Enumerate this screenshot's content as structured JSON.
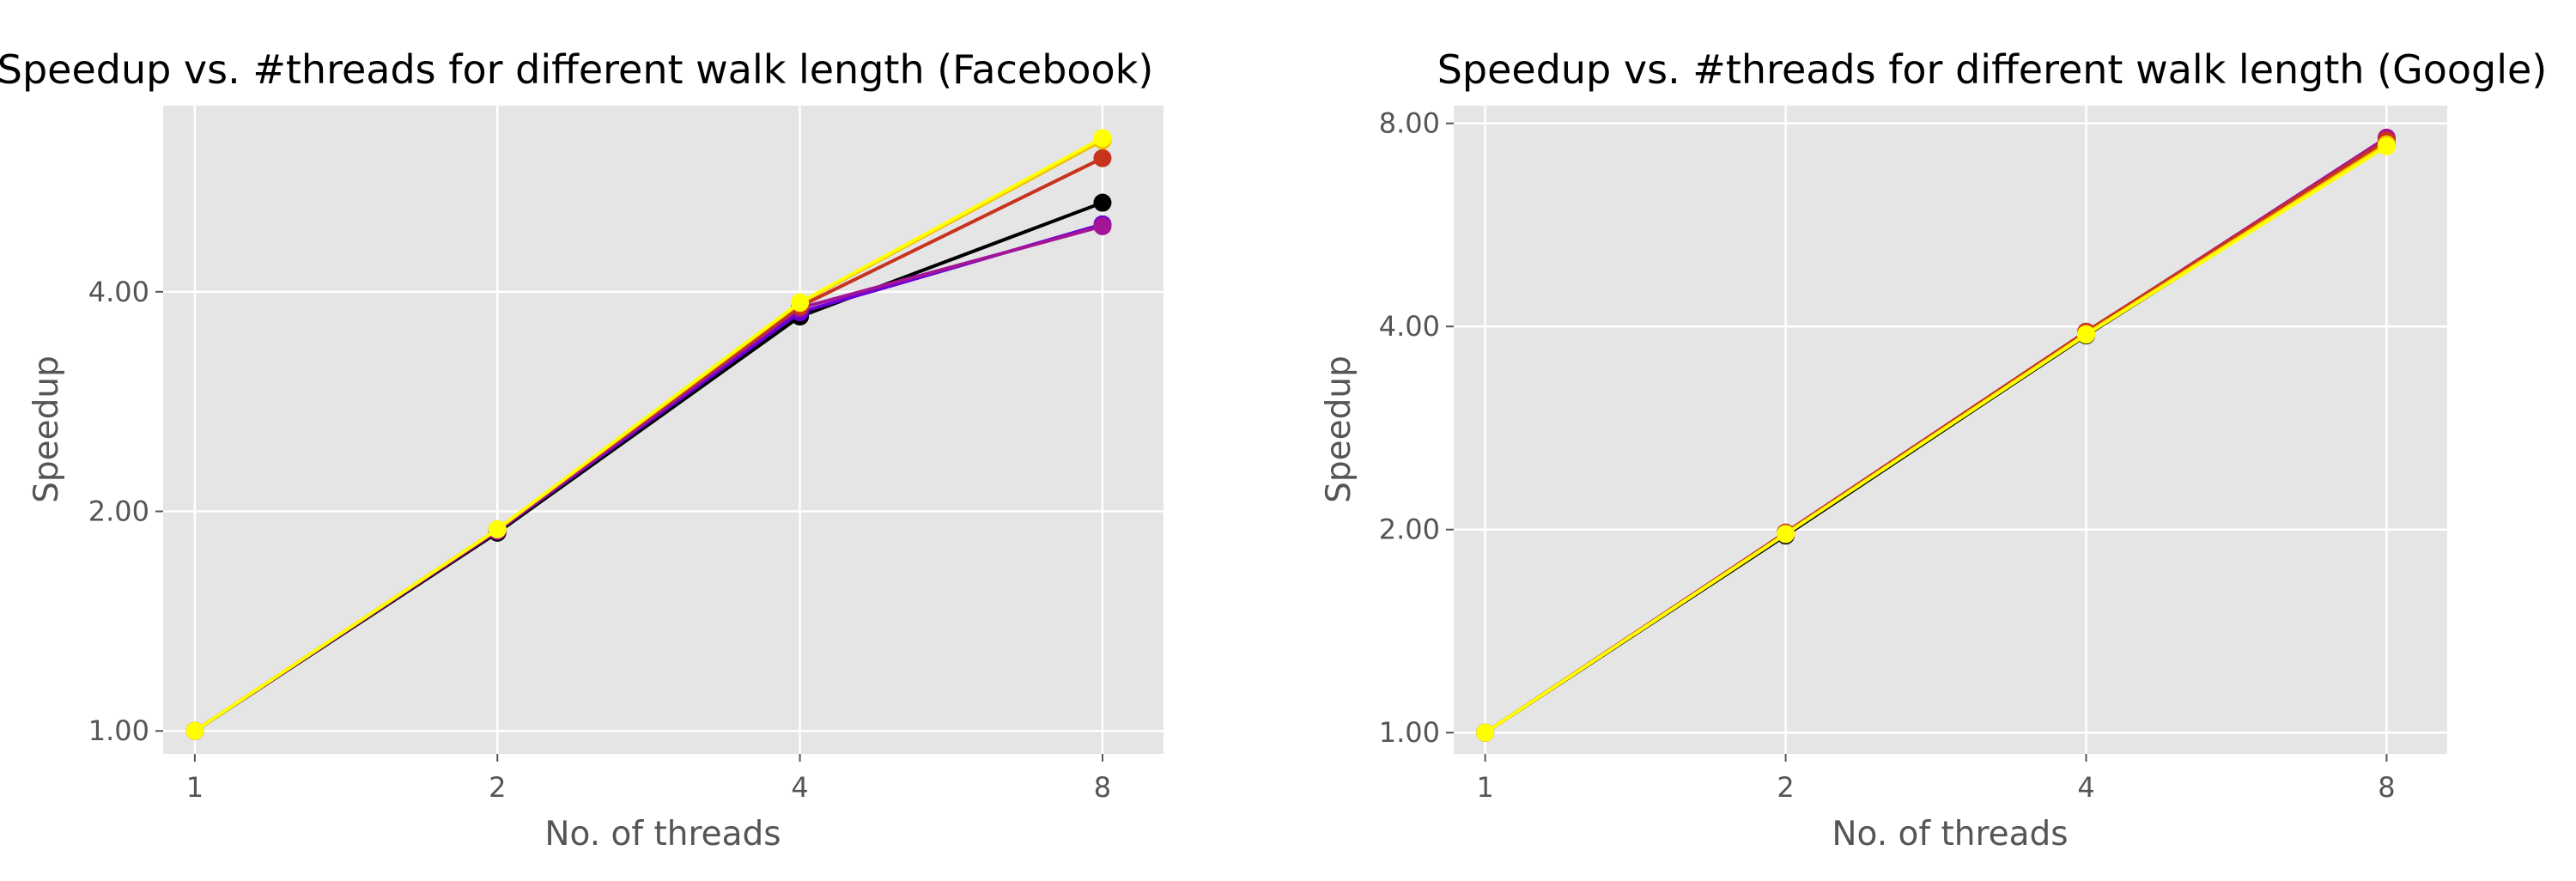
{
  "figure": {
    "background": "#ffffff",
    "panel_background": "#e5e5e5",
    "grid_color": "#ffffff",
    "text_color": "#555555"
  },
  "chart_data": [
    {
      "type": "line",
      "title": "Speedup vs. #threads for different walk length (Facebook)",
      "xlabel": "No. of threads",
      "ylabel": "Speedup",
      "xscale": "log2",
      "yscale": "log2",
      "x": [
        1,
        2,
        4,
        8
      ],
      "xticklabels": [
        "1",
        "2",
        "4",
        "8"
      ],
      "yticks": [
        1,
        2,
        4
      ],
      "yticklabels": [
        "1.00",
        "2.00",
        "4.00"
      ],
      "xlim": [
        0.93,
        9.2
      ],
      "ylim": [
        0.93,
        7.2
      ],
      "grid": true,
      "legend": "none",
      "series": [
        {
          "color": "#000000",
          "values": [
            1.0,
            1.87,
            3.7,
            5.3
          ]
        },
        {
          "color": "#6a00d8",
          "values": [
            1.0,
            1.88,
            3.75,
            4.95
          ]
        },
        {
          "color": "#a31596",
          "values": [
            1.0,
            1.88,
            3.8,
            4.92
          ]
        },
        {
          "color": "#c8331d",
          "values": [
            1.0,
            1.89,
            3.82,
            6.1
          ]
        },
        {
          "color": "#f0c000",
          "values": [
            1.0,
            1.89,
            3.86,
            6.45
          ]
        },
        {
          "color": "#ffff00",
          "values": [
            1.0,
            1.89,
            3.87,
            6.5
          ]
        }
      ]
    },
    {
      "type": "line",
      "title": "Speedup vs. #threads for different walk length (Google)",
      "xlabel": "No. of threads",
      "ylabel": "Speedup",
      "xscale": "log2",
      "yscale": "log2",
      "x": [
        1,
        2,
        4,
        8
      ],
      "xticklabels": [
        "1",
        "2",
        "4",
        "8"
      ],
      "yticks": [
        1,
        2,
        4,
        8
      ],
      "yticklabels": [
        "1.00",
        "2.00",
        "4.00",
        "8.00"
      ],
      "xlim": [
        0.93,
        9.2
      ],
      "ylim": [
        0.93,
        8.5
      ],
      "grid": true,
      "legend": "none",
      "series": [
        {
          "color": "#000000",
          "values": [
            1.0,
            1.96,
            3.88,
            7.45
          ]
        },
        {
          "color": "#6a00d8",
          "values": [
            1.0,
            1.97,
            3.91,
            7.6
          ]
        },
        {
          "color": "#a31596",
          "values": [
            1.0,
            1.97,
            3.92,
            7.62
          ]
        },
        {
          "color": "#c8331d",
          "values": [
            1.0,
            1.98,
            3.93,
            7.55
          ]
        },
        {
          "color": "#f0c000",
          "values": [
            1.0,
            1.97,
            3.9,
            7.45
          ]
        },
        {
          "color": "#ffff00",
          "values": [
            1.0,
            1.97,
            3.89,
            7.4
          ]
        }
      ]
    }
  ]
}
